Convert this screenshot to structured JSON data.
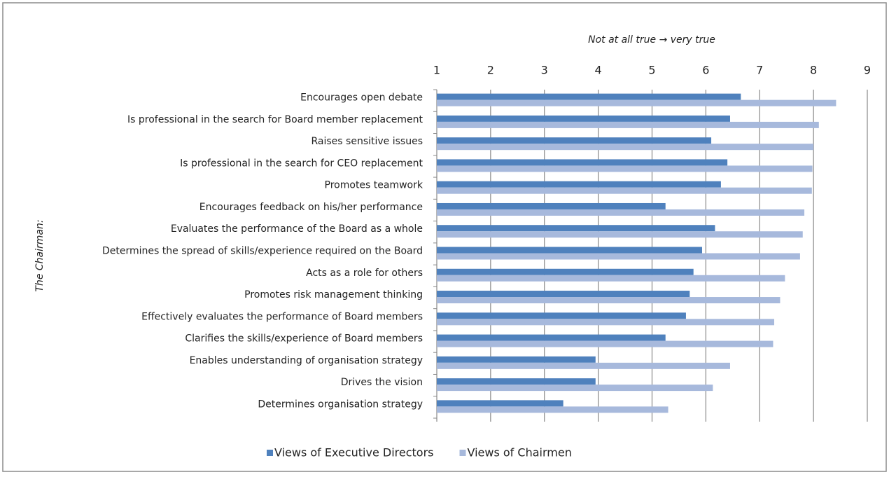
{
  "chart_data": {
    "type": "barh",
    "xlabel": "Not at all true → very true",
    "ylabel": "The Chairman:",
    "categories": [
      "Encourages open debate",
      "Is professional in the search for Board member replacement",
      "Raises sensitive issues",
      "Is professional in the search for CEO replacement",
      "Promotes teamwork",
      "Encourages feedback on his/her performance",
      "Evaluates the performance of the Board as a whole",
      "Determines the spread of skills/experience required on the Board",
      "Acts as a role for others",
      "Promotes risk management thinking",
      "Effectively evaluates the performance of Board members",
      "Clarifies the skills/experience of Board members",
      "Enables understanding of organisation strategy",
      "Drives the vision",
      "Determines organisation strategy"
    ],
    "series": [
      {
        "name": "Views of Executive Directors",
        "color": "#4f81bd",
        "values": [
          6.65,
          6.45,
          6.1,
          6.4,
          6.28,
          5.25,
          6.17,
          5.93,
          5.77,
          5.7,
          5.63,
          5.25,
          3.95,
          3.95,
          3.35
        ]
      },
      {
        "name": "Views of Chairmen",
        "color": "#a7b9dc",
        "values": [
          8.42,
          8.1,
          8.0,
          7.98,
          7.97,
          7.83,
          7.8,
          7.75,
          7.47,
          7.38,
          7.27,
          7.25,
          6.45,
          6.13,
          5.3
        ]
      }
    ],
    "xlim": [
      1,
      9
    ],
    "xticks": [
      1,
      2,
      3,
      4,
      5,
      6,
      7,
      8,
      9
    ],
    "grid": true,
    "legend": "bottom"
  }
}
